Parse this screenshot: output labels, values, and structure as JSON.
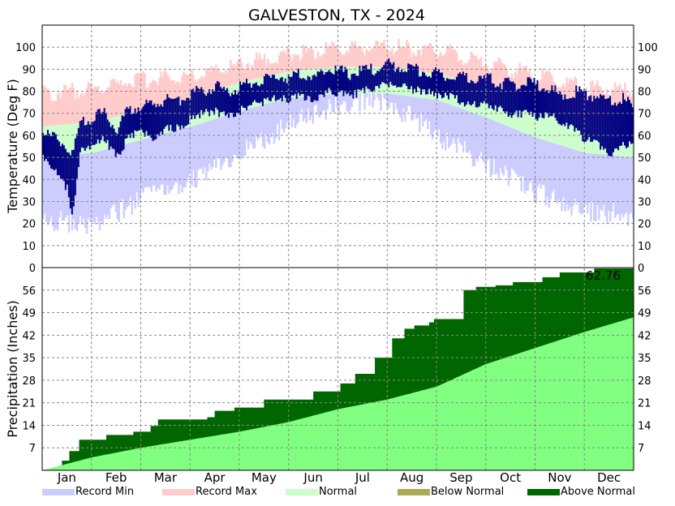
{
  "chart_data": [
    {
      "type": "area",
      "title": "GALVESTON, TX - 2024",
      "ylabel": "Temperature (Deg F)",
      "ylim": [
        0,
        110
      ],
      "yticks": [
        "10",
        "20",
        "30",
        "40",
        "50",
        "60",
        "70",
        "80",
        "90",
        "100"
      ],
      "zero_label": "0",
      "grid": true,
      "note": "Daily bars: record max band (pink), normal band (light green), record min band (light blue), observed daily high-low (navy).",
      "series": [
        {
          "name": "Record Min",
          "color": "#ccccff"
        },
        {
          "name": "Record Max",
          "color": "#ffcccc"
        },
        {
          "name": "Normal",
          "color": "#ccffcc"
        }
      ],
      "normal_high": {
        "x_month": [
          1,
          2,
          3,
          4,
          5,
          6,
          7,
          8,
          9,
          10,
          11,
          12,
          12.99
        ],
        "y": [
          64,
          66,
          71,
          77,
          84,
          89,
          91,
          91,
          88,
          82,
          73,
          66,
          64
        ]
      },
      "normal_low": {
        "x_month": [
          1,
          2,
          3,
          4,
          5,
          6,
          7,
          8,
          9,
          10,
          11,
          12,
          12.99
        ],
        "y": [
          50,
          52,
          58,
          64,
          71,
          77,
          79,
          79,
          76,
          68,
          59,
          52,
          50
        ]
      },
      "record_max": {
        "x_month": [
          1,
          2,
          3,
          4,
          5,
          6,
          7,
          8,
          9,
          10,
          11,
          12,
          12.99
        ],
        "y": [
          79,
          81,
          85,
          87,
          92,
          97,
          99,
          100,
          99,
          93,
          87,
          82,
          80
        ]
      },
      "record_min": {
        "x_month": [
          1,
          2,
          3,
          4,
          5,
          6,
          7,
          8,
          9,
          10,
          11,
          12,
          12.99
        ],
        "y": [
          17,
          14,
          26,
          35,
          47,
          60,
          69,
          70,
          55,
          42,
          29,
          21,
          18
        ]
      },
      "observed": {
        "color": "#000080",
        "x_month": [
          1,
          1.25,
          1.5,
          1.6,
          1.75,
          2,
          2.25,
          2.5,
          2.75,
          3,
          3.25,
          3.5,
          3.75,
          4,
          4.25,
          4.5,
          4.75,
          5,
          5.25,
          5.5,
          5.75,
          6,
          6.25,
          6.5,
          6.75,
          7,
          7.25,
          7.5,
          7.75,
          8,
          8.25,
          8.5,
          8.75,
          9,
          9.25,
          9.5,
          9.75,
          10,
          10.25,
          10.5,
          10.75,
          11,
          11.25,
          11.5,
          11.75,
          12,
          12.25,
          12.5,
          12.75,
          12.99
        ],
        "high": [
          62,
          58,
          55,
          50,
          66,
          68,
          70,
          63,
          72,
          74,
          73,
          77,
          75,
          79,
          80,
          82,
          80,
          82,
          84,
          85,
          87,
          86,
          88,
          86,
          90,
          89,
          88,
          89,
          90,
          92,
          91,
          90,
          89,
          88,
          87,
          86,
          85,
          86,
          84,
          83,
          84,
          83,
          82,
          78,
          80,
          79,
          78,
          75,
          77,
          72
        ],
        "low": [
          52,
          45,
          38,
          24,
          55,
          58,
          60,
          52,
          62,
          64,
          60,
          66,
          65,
          70,
          72,
          73,
          70,
          73,
          76,
          77,
          79,
          78,
          80,
          78,
          82,
          81,
          80,
          82,
          84,
          85,
          84,
          83,
          82,
          80,
          80,
          77,
          76,
          76,
          74,
          71,
          72,
          70,
          72,
          68,
          66,
          60,
          58,
          52,
          57,
          60
        ]
      }
    },
    {
      "type": "area",
      "ylabel": "Precipitation (Inches)",
      "ylim": [
        0,
        63
      ],
      "yticks": [
        "7",
        "14",
        "21",
        "28",
        "35",
        "42",
        "49",
        "56"
      ],
      "annotation": "62.76",
      "categories": [
        "Jan",
        "Feb",
        "Mar",
        "Apr",
        "May",
        "Jun",
        "Jul",
        "Aug",
        "Sep",
        "Oct",
        "Nov",
        "Dec"
      ],
      "grid": true,
      "normal_cumulative": {
        "x_month": [
          1,
          2,
          3,
          4,
          5,
          6,
          7,
          8,
          9,
          10,
          11,
          12,
          12.99
        ],
        "y": [
          0,
          4,
          7,
          9.5,
          12,
          15,
          19,
          22,
          26,
          33,
          38,
          43,
          47.5
        ]
      },
      "observed_cumulative": {
        "x_month": [
          1,
          1.4,
          1.55,
          1.75,
          2.3,
          2.85,
          3.2,
          3.35,
          4.35,
          4.5,
          4.9,
          5.5,
          6.5,
          7.05,
          7.35,
          7.75,
          8.1,
          8.35,
          8.55,
          8.85,
          8.95,
          9.55,
          9.8,
          10.2,
          10.55,
          11.15,
          11.5,
          12.2,
          12.99
        ],
        "y": [
          0,
          3,
          6,
          9.5,
          11,
          12,
          13.8,
          15.8,
          16.5,
          18.5,
          19.5,
          22,
          24.5,
          27,
          30,
          35,
          41,
          44,
          45,
          46,
          47,
          56,
          57,
          57.5,
          58.5,
          60,
          61.5,
          62.76,
          62.76
        ]
      },
      "series": [
        {
          "name": "Below Normal",
          "color": "#aaaa55"
        },
        {
          "name": "Above Normal",
          "color": "#006600"
        }
      ]
    }
  ],
  "legend": [
    {
      "label": "Record Min",
      "color": "#ccccff"
    },
    {
      "label": "Record Max",
      "color": "#ffcccc"
    },
    {
      "label": "Normal",
      "color": "#ccffcc"
    },
    {
      "label": "Below Normal",
      "color": "#aaaa55"
    },
    {
      "label": "Above Normal",
      "color": "#006600"
    }
  ],
  "precip_normal_color": "#80ff80"
}
